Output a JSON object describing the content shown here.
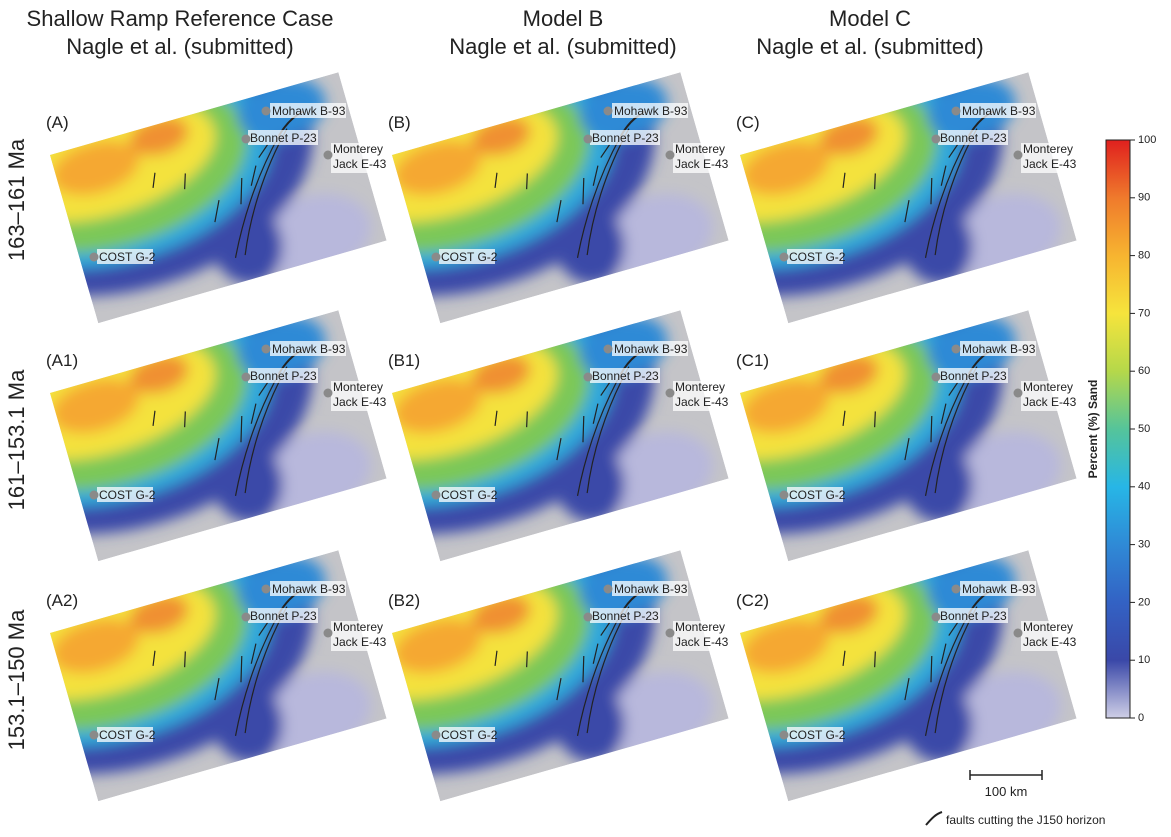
{
  "columns": [
    {
      "title": [
        "Shallow Ramp Reference Case",
        "Nagle et al. (submitted)"
      ]
    },
    {
      "title": [
        "Model B",
        "Nagle et al. (submitted)"
      ]
    },
    {
      "title": [
        "Model C",
        "Nagle et al. (submitted)"
      ]
    }
  ],
  "rows": [
    "163–161 Ma",
    "161–153.1 Ma",
    "153.1–150 Ma"
  ],
  "panels": [
    [
      "(A)",
      "(B)",
      "(C)"
    ],
    [
      "(A1)",
      "(B1)",
      "(C1)"
    ],
    [
      "(A2)",
      "(B2)",
      "(C2)"
    ]
  ],
  "wells": {
    "mohawk": "Mohawk B-93",
    "bonnet": "Bonnet P-23",
    "monterey": [
      "Monterey",
      "Jack E-43"
    ],
    "cost": "COST G-2"
  },
  "colorbar": {
    "label": "Percent (%) Sand",
    "lim": [
      0,
      100
    ],
    "ticks": [
      0,
      10,
      20,
      30,
      40,
      50,
      60,
      70,
      80,
      90,
      100
    ],
    "colors": [
      "#cfcfe6",
      "#3a48a8",
      "#3362c4",
      "#2f8ad6",
      "#27b6e6",
      "#55c49a",
      "#b5d84a",
      "#f6e43c",
      "#f7b430",
      "#ef7a2c",
      "#e0201e"
    ]
  },
  "scale_bar": "100 km",
  "legend": "faults cutting the J150 horizon"
}
